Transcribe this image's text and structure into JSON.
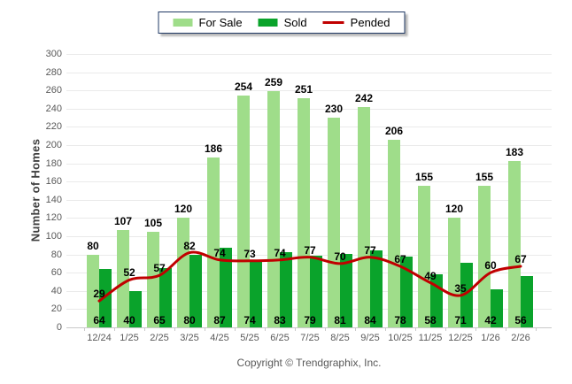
{
  "y_axis_title": "Number of Homes",
  "footer": {
    "copyright": "Copyright © Trendgraphix, Inc."
  },
  "colors": {
    "for_sale": "#9fdd8a",
    "sold": "#0aa32b",
    "pended": "#c00000",
    "legend_border": "#1f3864",
    "grid": "#eaeaea",
    "axis": "#c9c9c9",
    "tick_text": "#595959",
    "value_text": "#000000"
  },
  "chart_data": {
    "type": "bar",
    "categories": [
      "12/24",
      "1/25",
      "2/25",
      "3/25",
      "4/25",
      "5/25",
      "6/25",
      "7/25",
      "8/25",
      "9/25",
      "10/25",
      "11/25",
      "12/25",
      "1/26",
      "2/26"
    ],
    "series": [
      {
        "name": "For Sale",
        "type": "bar",
        "color": "#9fdd8a",
        "values": [
          80,
          107,
          105,
          120,
          186,
          254,
          259,
          251,
          230,
          242,
          206,
          155,
          120,
          155,
          183
        ]
      },
      {
        "name": "Sold",
        "type": "bar",
        "color": "#0aa32b",
        "values": [
          64,
          40,
          65,
          80,
          87,
          74,
          83,
          79,
          81,
          84,
          78,
          58,
          71,
          42,
          56
        ]
      },
      {
        "name": "Pended",
        "type": "line",
        "color": "#c00000",
        "values": [
          29,
          52,
          57,
          82,
          74,
          73,
          74,
          77,
          70,
          77,
          67,
          49,
          35,
          60,
          67
        ]
      }
    ],
    "title": "",
    "xlabel": "",
    "ylabel": "Number of Homes",
    "ylim": [
      0,
      300
    ],
    "ytick_step": 20,
    "grid": true,
    "legend_position": "top-center"
  }
}
